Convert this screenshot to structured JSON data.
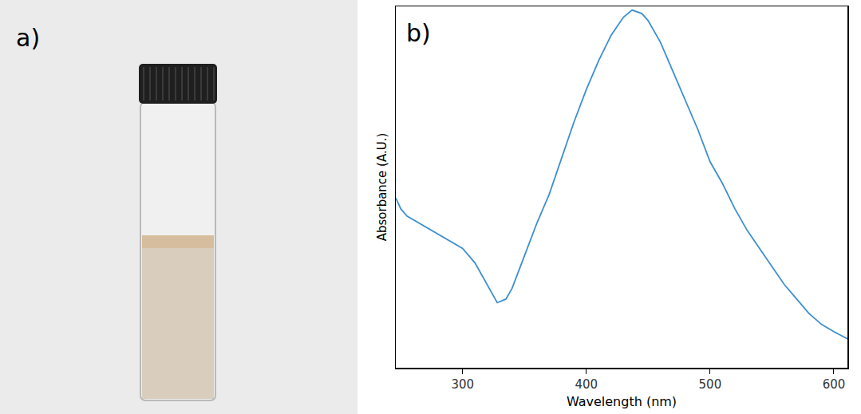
{
  "photo": {
    "label": "a)"
  },
  "chart_data": {
    "type": "line",
    "annotations": [
      "b)"
    ],
    "x_label": "Wavelength (nm)",
    "y_label": "Absorbance (A.U.)",
    "x": [
      246,
      250,
      255,
      270,
      280,
      290,
      300,
      310,
      320,
      328,
      335,
      340,
      350,
      360,
      370,
      380,
      390,
      400,
      410,
      420,
      430,
      437,
      445,
      450,
      460,
      470,
      480,
      490,
      500,
      510,
      520,
      530,
      540,
      550,
      560,
      570,
      580,
      590,
      600,
      611
    ],
    "values": [
      0.47,
      0.44,
      0.42,
      0.39,
      0.37,
      0.35,
      0.33,
      0.29,
      0.23,
      0.18,
      0.19,
      0.22,
      0.31,
      0.4,
      0.48,
      0.58,
      0.68,
      0.77,
      0.85,
      0.92,
      0.97,
      0.99,
      0.98,
      0.96,
      0.9,
      0.82,
      0.74,
      0.66,
      0.57,
      0.51,
      0.44,
      0.38,
      0.33,
      0.28,
      0.23,
      0.19,
      0.15,
      0.12,
      0.1,
      0.08
    ],
    "color": "#3d8fd1",
    "xlim": [
      246,
      611
    ],
    "xticks": [
      300,
      400,
      500,
      600
    ],
    "ylim": [
      0,
      1
    ],
    "tick_labels": "x",
    "grid": false
  }
}
